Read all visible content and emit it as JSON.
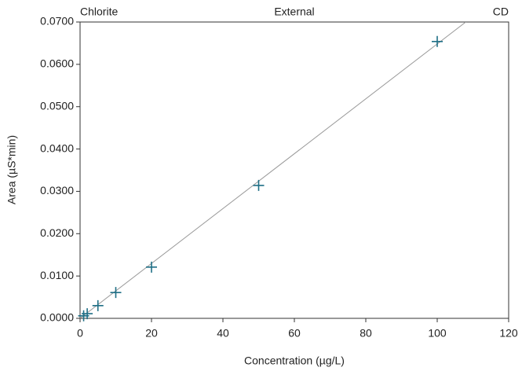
{
  "chart_data": {
    "type": "scatter",
    "title_left": "Chlorite",
    "title": "External",
    "title_right": "CD",
    "x_label": "Concentration (µg/L)",
    "y_label": "Area (µS*min)",
    "x": [
      1,
      2,
      5,
      10,
      20,
      50,
      100
    ],
    "values": [
      0.0006,
      0.0011,
      0.003,
      0.0061,
      0.0121,
      0.0314,
      0.0654
    ],
    "color": "#1f6f86",
    "fit_line": {
      "x": [
        0,
        108
      ],
      "y": [
        0,
        0.07
      ],
      "color": "#999999"
    },
    "xlim": [
      0,
      120
    ],
    "xticks": [
      0,
      20,
      40,
      60,
      80,
      100,
      120
    ],
    "ylim": [
      0,
      0.07
    ],
    "yticks": [
      {
        "value": 0,
        "label": "0.0000"
      },
      {
        "value": 0.01,
        "label": "0.0100"
      },
      {
        "value": 0.02,
        "label": "0.0200"
      },
      {
        "value": 0.03,
        "label": "0.0300"
      },
      {
        "value": 0.04,
        "label": "0.0400"
      },
      {
        "value": 0.05,
        "label": "0.0500"
      },
      {
        "value": 0.06,
        "label": "0.0600"
      },
      {
        "value": 0.07,
        "label": "0.0700"
      }
    ],
    "grid": false
  }
}
